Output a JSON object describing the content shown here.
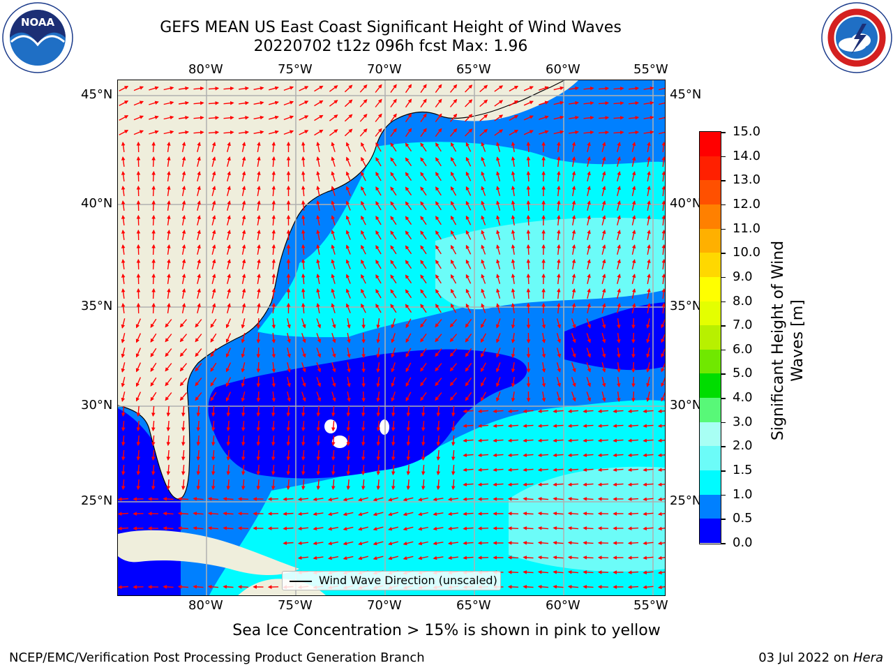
{
  "title": {
    "line1": "GEFS MEAN US East Coast Significant Height of Wind Waves",
    "line2": "20220702 t12z 096h fcst   Max: 1.96"
  },
  "logos": {
    "left": {
      "icon": "noaa-logo",
      "text": "NOAA"
    },
    "right": {
      "icon": "national-weather-service-logo"
    }
  },
  "map": {
    "lon_labels": [
      "80°W",
      "75°W",
      "70°W",
      "65°W",
      "60°W",
      "55°W"
    ],
    "lat_labels": [
      "45°N",
      "40°N",
      "35°N",
      "30°N",
      "25°N"
    ],
    "lon_range": [
      -85,
      -54.2
    ],
    "lat_range": [
      20.5,
      46.3
    ],
    "land_color": "#efeedc",
    "gridline_color": "#b0b0b0",
    "arrow_color": "#ff0000",
    "legend_label": "Wind Wave Direction (unscaled)"
  },
  "colorbar": {
    "title": "Significant Height of Wind Waves [m]",
    "ticks": [
      "15.0",
      "14.0",
      "13.0",
      "12.0",
      "11.0",
      "10.0",
      "9.0",
      "8.0",
      "7.0",
      "6.0",
      "5.0",
      "4.0",
      "3.0",
      "2.0",
      "1.5",
      "1.0",
      "0.5",
      "0.0"
    ],
    "colors": [
      "#ff0000",
      "#ff2000",
      "#ff5000",
      "#ff8000",
      "#ffb000",
      "#ffd800",
      "#ffff00",
      "#e4ff00",
      "#b8f000",
      "#70e800",
      "#00dd00",
      "#58f878",
      "#a8fff4",
      "#6cfcf8",
      "#00fbff",
      "#0080ff",
      "#0000ff"
    ]
  },
  "footer": {
    "ice_note": "Sea Ice Concentration > 15% is shown in pink to yellow",
    "credit": "NCEP/EMC/Verification Post Processing Product Generation Branch",
    "date": "03 Jul 2022",
    "on": "on",
    "machine": "Hera"
  }
}
